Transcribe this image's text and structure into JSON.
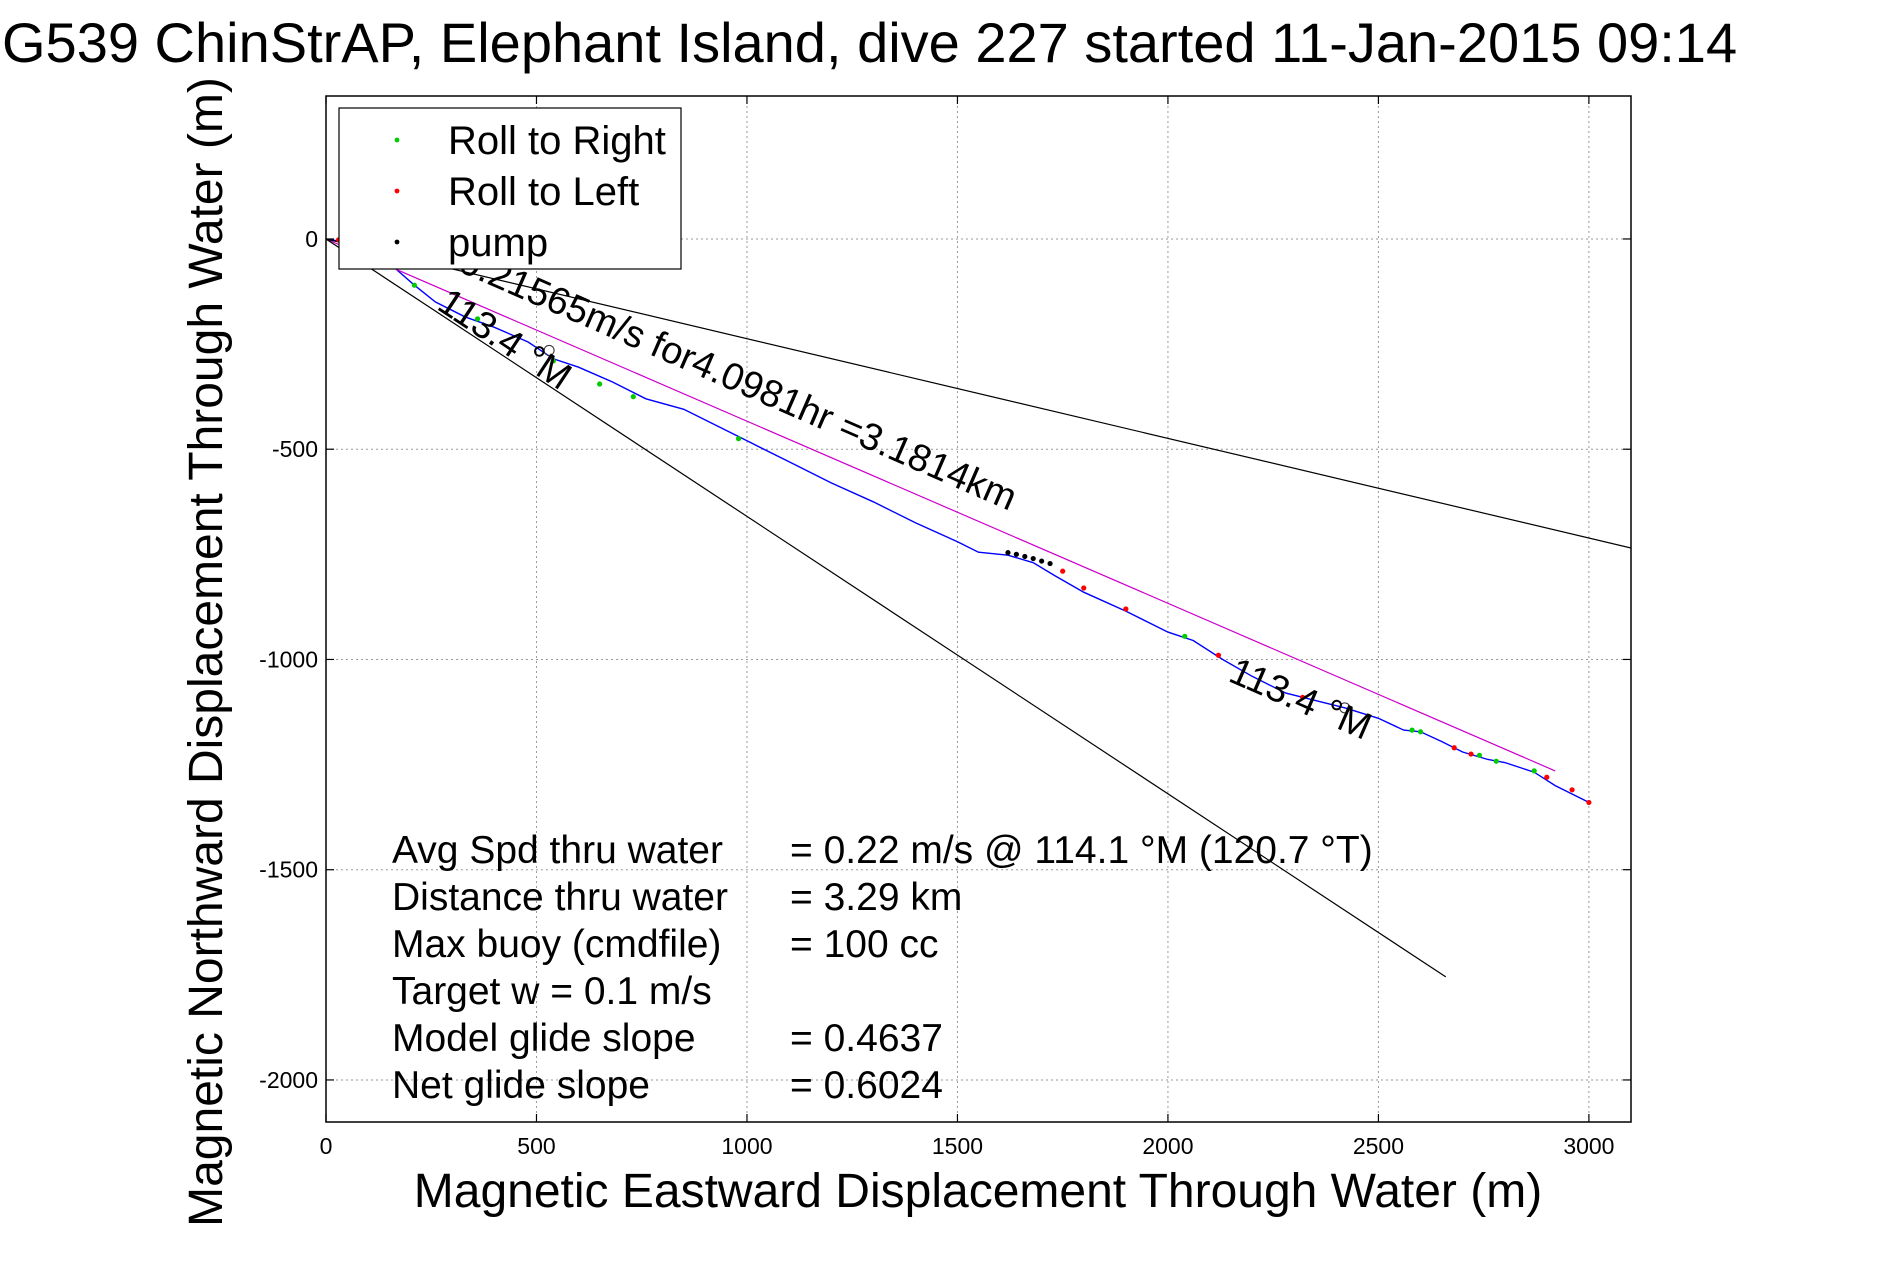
{
  "chart_data": {
    "type": "line",
    "title": "G539 ChinStrAP, Elephant Island, dive 227 started 11-Jan-2015 09:14",
    "xlabel": "Magnetic Eastward Displacement Through Water (m)",
    "ylabel": "Magnetic Northward Displacement Through Water (m)",
    "xlim": [
      0,
      3100
    ],
    "ylim": [
      -2100,
      340
    ],
    "xticks": [
      0,
      500,
      1000,
      1500,
      2000,
      2500,
      3000
    ],
    "yticks": [
      0,
      -500,
      -1000,
      -1500,
      -2000
    ],
    "grid": true,
    "legend_position": "top-left",
    "legend": [
      {
        "label": "Roll to Right",
        "color": "#00cc00"
      },
      {
        "label": "Roll to Left",
        "color": "#ff0000"
      },
      {
        "label": "pump",
        "color": "#000000"
      }
    ],
    "series": [
      {
        "role": "track",
        "color": "#0000ff",
        "x": [
          0,
          60,
          120,
          170,
          210,
          260,
          330,
          400,
          480,
          540,
          600,
          680,
          760,
          850,
          1000,
          1100,
          1200,
          1300,
          1400,
          1500,
          1550,
          1620,
          1680,
          1730,
          1800,
          1900,
          2000,
          2060,
          2130,
          2200,
          2280,
          2340,
          2420,
          2500,
          2560,
          2600,
          2650,
          2700,
          2760,
          2800,
          2870,
          2920,
          3000
        ],
        "y": [
          0,
          -10,
          -25,
          -75,
          -110,
          -150,
          -185,
          -210,
          -245,
          -285,
          -305,
          -340,
          -380,
          -405,
          -480,
          -530,
          -580,
          -625,
          -675,
          -720,
          -745,
          -752,
          -770,
          -800,
          -840,
          -885,
          -935,
          -955,
          -1000,
          -1040,
          -1080,
          -1095,
          -1115,
          -1140,
          -1168,
          -1172,
          -1195,
          -1220,
          -1238,
          -1245,
          -1268,
          -1300,
          -1340
        ]
      },
      {
        "role": "fit",
        "color": "#cc00cc",
        "x": [
          0,
          2920
        ],
        "y": [
          0,
          -1265
        ]
      },
      {
        "role": "heading-bound-upper",
        "color": "#000000",
        "x": [
          0,
          3100
        ],
        "y": [
          0,
          -735
        ]
      },
      {
        "role": "heading-bound-lower",
        "color": "#000000",
        "x": [
          0,
          2660
        ],
        "y": [
          0,
          -1755
        ]
      }
    ],
    "markers": {
      "roll_right": {
        "color": "#00cc00",
        "x": [
          210,
          360,
          540,
          650,
          730,
          980,
          2040,
          2580,
          2600,
          2740,
          2780,
          2870
        ],
        "y": [
          -110,
          -190,
          -290,
          -345,
          -375,
          -475,
          -945,
          -1168,
          -1172,
          -1228,
          -1242,
          -1265
        ]
      },
      "roll_left": {
        "color": "#ff0000",
        "x": [
          30,
          1750,
          1800,
          1900,
          2120,
          2320,
          2680,
          2720,
          2900,
          2960,
          3000
        ],
        "y": [
          -2,
          -790,
          -830,
          -880,
          -990,
          -1090,
          -1210,
          -1225,
          -1280,
          -1310,
          -1340
        ]
      },
      "pump": {
        "color": "#000000",
        "x": [
          1620,
          1640,
          1660,
          1680,
          1700,
          1720
        ],
        "y": [
          -746,
          -750,
          -755,
          -760,
          -766,
          -772
        ]
      },
      "open_circles": {
        "x": [
          530,
          2420
        ],
        "y": [
          -265,
          -1115
        ]
      }
    },
    "annotations": [
      {
        "text": "0.21565m/s for4.0981hr =3.1814km",
        "x": 310,
        "y": -75,
        "angle_deg": 23.5
      },
      {
        "text": "113.4 °M",
        "x": 260,
        "y": -165,
        "angle_deg": 33.5
      },
      {
        "text": "113.4 °M",
        "x": 2140,
        "y": -1050,
        "angle_deg": 23.5
      }
    ],
    "stats": [
      {
        "label": "Avg Spd thru water",
        "value": "=  0.22 m/s @ 114.1 °M (120.7 °T)"
      },
      {
        "label": "Distance thru water",
        "value": "=  3.29 km"
      },
      {
        "label": "Max buoy (cmdfile)",
        "value": "= 100 cc"
      },
      {
        "label": "Target w    = 0.1 m/s",
        "value": ""
      },
      {
        "label": "Model glide slope",
        "value": "= 0.4637"
      },
      {
        "label": "Net glide slope",
        "value": "= 0.6024"
      }
    ]
  }
}
